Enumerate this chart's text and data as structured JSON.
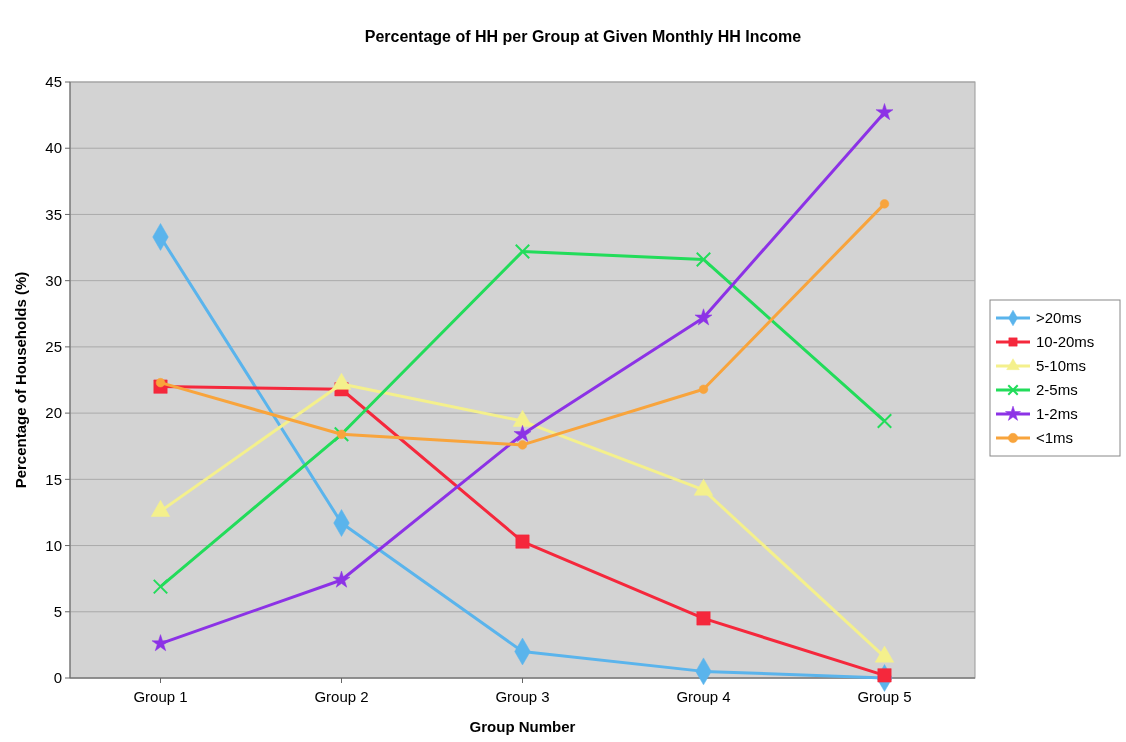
{
  "chart_data": {
    "type": "line",
    "title": "Percentage of HH per Group at Given Monthly HH Income",
    "xlabel": "Group Number",
    "ylabel": "Percentage of Households (%)",
    "categories": [
      "Group 1",
      "Group 2",
      "Group 3",
      "Group 4",
      "Group 5"
    ],
    "ylim": [
      0,
      45
    ],
    "yticks": [
      0,
      5,
      10,
      15,
      20,
      25,
      30,
      35,
      40,
      45
    ],
    "grid": "y",
    "legend": "right",
    "line_style": "solid",
    "series": [
      {
        "name": ">20ms",
        "color": "#5ab4ec",
        "marker": "diamond",
        "values": [
          33.3,
          11.7,
          2.0,
          0.5,
          0.0
        ]
      },
      {
        "name": "10-20ms",
        "color": "#f5283c",
        "marker": "square",
        "values": [
          22.0,
          21.8,
          10.3,
          4.5,
          0.2
        ]
      },
      {
        "name": "5-10ms",
        "color": "#f4f08c",
        "marker": "triangle",
        "values": [
          12.6,
          22.2,
          19.4,
          14.2,
          1.6
        ]
      },
      {
        "name": "2-5ms",
        "color": "#22dc5a",
        "marker": "cross",
        "values": [
          6.9,
          18.4,
          32.2,
          31.6,
          19.4
        ]
      },
      {
        "name": "1-2ms",
        "color": "#8c32e6",
        "marker": "star",
        "values": [
          2.6,
          7.4,
          18.4,
          27.2,
          42.7
        ]
      },
      {
        "name": "<1ms",
        "color": "#f8a43c",
        "marker": "circle",
        "values": [
          22.3,
          18.4,
          17.6,
          21.8,
          35.8
        ]
      }
    ]
  }
}
